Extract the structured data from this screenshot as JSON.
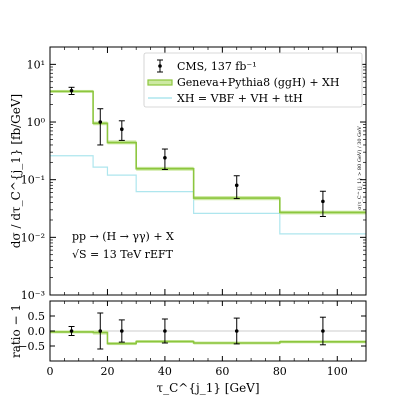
{
  "chart_data": [
    {
      "type": "line",
      "panel": "main",
      "xlim": [
        0,
        110
      ],
      "ylim": [
        0.001,
        20
      ],
      "yscale": "log",
      "xlabel": "τ_C^{j_1}  [GeV]",
      "ylabel": "dσ / dτ_C^{j_1}  [fb/GeV]",
      "yticks": [
        "10⁻³",
        "10⁻²",
        "10⁻¹",
        "10⁰",
        "10¹"
      ],
      "bin_edges": [
        0,
        15,
        20,
        30,
        50,
        80,
        110
      ],
      "series": [
        {
          "name": "CMS, 137 fb⁻¹",
          "x": [
            7.5,
            17.5,
            25,
            40,
            65,
            95
          ],
          "y": [
            3.5,
            1.0,
            0.75,
            0.24,
            0.08,
            0.042
          ],
          "yerr_low": [
            0.5,
            0.6,
            0.27,
            0.09,
            0.033,
            0.019
          ],
          "yerr_high": [
            0.5,
            0.7,
            0.3,
            0.1,
            0.037,
            0.021
          ],
          "color": "#000000"
        },
        {
          "name": "Geneva+Pythia8 (ggH) + XH",
          "type": "step",
          "values": [
            3.4,
            0.95,
            0.44,
            0.155,
            0.048,
            0.027
          ],
          "band_low": [
            3.2,
            0.88,
            0.41,
            0.143,
            0.044,
            0.025
          ],
          "band_high": [
            3.6,
            1.02,
            0.48,
            0.167,
            0.052,
            0.029
          ],
          "color": "#8cc63e"
        },
        {
          "name": "XH = VBF + VH + ttH",
          "type": "step",
          "values": [
            0.26,
            0.165,
            0.12,
            0.062,
            0.026,
            0.0115
          ],
          "color": "#aee6ee"
        }
      ],
      "annotations": {
        "process": "pp → (H → γγ) + X",
        "energy": "√S = 13 TeV    rEFT",
        "cut_note": "σ(τ_C^{j_1} > 80 GeV) / 30 GeV"
      }
    },
    {
      "type": "line",
      "panel": "ratio",
      "xlim": [
        0,
        110
      ],
      "ylim": [
        -1,
        1
      ],
      "ylabel": "ratio − 1",
      "xticks": [
        "0",
        "20",
        "40",
        "60",
        "80",
        "100"
      ],
      "yticks": [
        "−0.5",
        "0.0",
        "0.5"
      ],
      "bin_edges": [
        0,
        15,
        20,
        30,
        50,
        80,
        110
      ],
      "series": [
        {
          "name": "CMS",
          "x": [
            7.5,
            17.5,
            25,
            40,
            65,
            95
          ],
          "y": [
            0.0,
            0.0,
            0.0,
            0.0,
            0.0,
            0.0
          ],
          "yerr": [
            0.15,
            0.6,
            0.37,
            0.4,
            0.43,
            0.46
          ],
          "color": "#000000"
        },
        {
          "name": "Geneva ratio",
          "type": "step",
          "values": [
            -0.03,
            -0.05,
            -0.42,
            -0.35,
            -0.4,
            -0.36
          ],
          "band_low": [
            -0.08,
            -0.12,
            -0.47,
            -0.4,
            -0.45,
            -0.41
          ],
          "band_high": [
            0.02,
            0.02,
            -0.37,
            -0.3,
            -0.35,
            -0.31
          ],
          "color": "#8cc63e"
        }
      ]
    }
  ],
  "legend": {
    "placement": "top-right",
    "entries": [
      "CMS, 137 fb⁻¹",
      "Geneva+Pythia8 (ggH) + XH",
      "XH = VBF + VH + ttH"
    ]
  },
  "colors": {
    "geneva": "#8cc63e",
    "geneva_band": "#cde9a3",
    "xh": "#aee6ee",
    "data": "#000000"
  }
}
